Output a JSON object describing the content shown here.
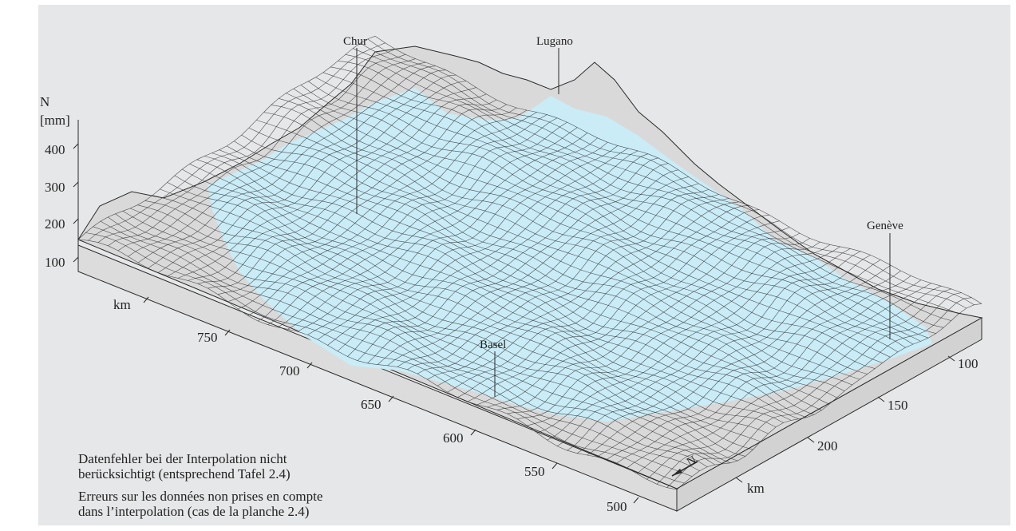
{
  "axis_z": {
    "symbol": "N",
    "unit": "[mm]",
    "ticks": [
      "400",
      "300",
      "200",
      "100"
    ]
  },
  "axis_x": {
    "ticks": [
      "750",
      "700",
      "650",
      "600",
      "550",
      "500"
    ],
    "unit": "km"
  },
  "axis_y": {
    "ticks": [
      "100",
      "150",
      "200"
    ],
    "unit": "km"
  },
  "places": [
    "Chur",
    "Lugano",
    "Genève",
    "Basel"
  ],
  "north_label": "N",
  "caption": {
    "de": [
      "Datenfehler bei der Interpolation nicht",
      "berücksichtigt (entsprechend Tafel 2.4)"
    ],
    "fr": [
      "Erreurs sur les données non prises en compte",
      "dans l’interpolation (cas de la planche 2.4)"
    ]
  },
  "colors": {
    "background": "#e6e7e8",
    "surface_fill": "#c9ecf7",
    "mesh_line": "#2a2a2a",
    "base_side": "#dcdcdc"
  }
}
